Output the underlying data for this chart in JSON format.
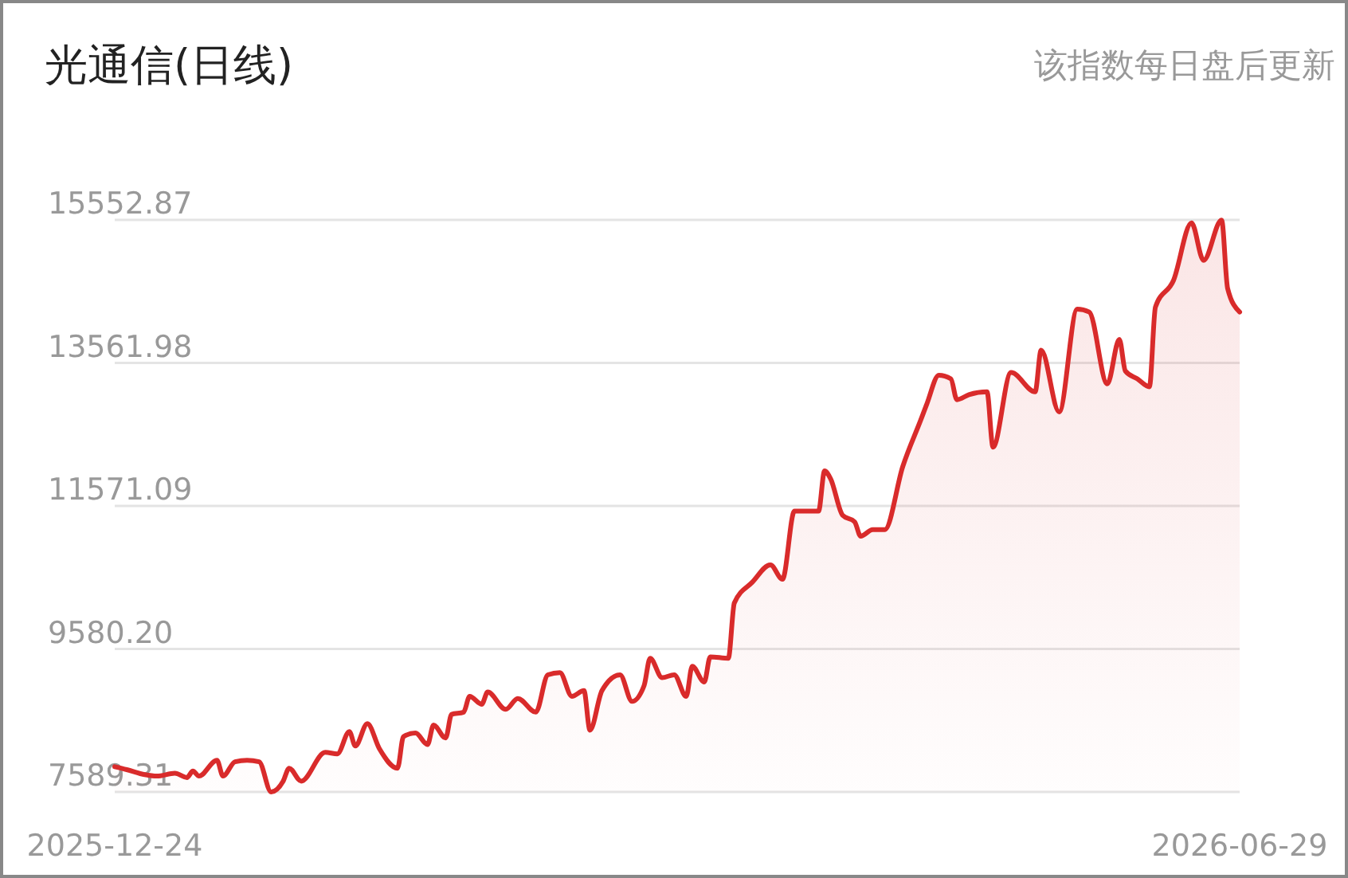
{
  "chart_data": {
    "type": "area",
    "title": "光通信(日线)",
    "subtitle": "该指数每日盘后更新",
    "xlim": [
      "2025-12-24",
      "2026-06-29"
    ],
    "xticks": [
      "2025-12-24",
      "2026-06-29"
    ],
    "ylim": [
      7589.31,
      15552.87
    ],
    "yticks": [
      {
        "value": 7589.31,
        "label": "7589.31"
      },
      {
        "value": 9580.2,
        "label": "9580.20"
      },
      {
        "value": 11571.09,
        "label": "11571.09"
      },
      {
        "value": 13561.98,
        "label": "13561.98"
      },
      {
        "value": 15552.87,
        "label": "15552.87"
      }
    ],
    "grid": "y",
    "series": [
      {
        "color": "#d92b2b",
        "x": [
          "2025-12-24",
          "2025-12-26",
          "2025-12-29",
          "2025-12-31",
          "2026-01-03",
          "2026-01-05",
          "2026-01-06",
          "2026-01-07",
          "2026-01-10",
          "2026-01-11",
          "2026-01-13",
          "2026-01-15",
          "2026-01-17",
          "2026-01-19",
          "2026-01-21",
          "2026-01-22",
          "2026-01-24",
          "2026-01-28",
          "2026-01-30",
          "2026-02-01",
          "2026-02-02",
          "2026-02-04",
          "2026-02-06",
          "2026-02-09",
          "2026-02-10",
          "2026-02-12",
          "2026-02-14",
          "2026-02-15",
          "2026-02-17",
          "2026-02-18",
          "2026-02-20",
          "2026-02-21",
          "2026-02-23",
          "2026-02-24",
          "2026-02-27",
          "2026-03-01",
          "2026-03-04",
          "2026-03-06",
          "2026-03-08",
          "2026-03-10",
          "2026-03-12",
          "2026-03-13",
          "2026-03-15",
          "2026-03-18",
          "2026-03-20",
          "2026-03-22",
          "2026-03-23",
          "2026-03-25",
          "2026-03-27",
          "2026-03-29",
          "2026-03-30",
          "2026-04-01",
          "2026-04-02",
          "2026-04-05",
          "2026-04-06",
          "2026-04-09",
          "2026-04-12",
          "2026-04-14",
          "2026-04-16",
          "2026-04-20",
          "2026-04-21",
          "2026-04-22",
          "2026-04-24",
          "2026-04-26",
          "2026-04-27",
          "2026-04-29",
          "2026-05-01",
          "2026-05-04",
          "2026-05-07",
          "2026-05-08",
          "2026-05-10",
          "2026-05-12",
          "2026-05-13",
          "2026-05-15",
          "2026-05-18",
          "2026-05-19",
          "2026-05-22",
          "2026-05-26",
          "2026-05-27",
          "2026-05-30",
          "2026-06-02",
          "2026-06-04",
          "2026-06-07",
          "2026-06-09",
          "2026-06-10",
          "2026-06-12",
          "2026-06-14",
          "2026-06-15",
          "2026-06-18",
          "2026-06-21",
          "2026-06-23",
          "2026-06-26",
          "2026-06-27",
          "2026-06-29"
        ],
        "values": [
          7940,
          7900,
          7830,
          7810,
          7850,
          7790,
          7880,
          7810,
          8030,
          7810,
          8010,
          8030,
          8010,
          7590,
          7740,
          7920,
          7740,
          8140,
          8120,
          8430,
          8230,
          8540,
          8190,
          7920,
          8360,
          8410,
          8250,
          8520,
          8340,
          8670,
          8700,
          8920,
          8810,
          8980,
          8740,
          8890,
          8700,
          9220,
          9250,
          8920,
          9000,
          8450,
          9000,
          9220,
          8850,
          9070,
          9450,
          9180,
          9220,
          8920,
          9340,
          9120,
          9470,
          9450,
          10220,
          10510,
          10750,
          10550,
          11500,
          11500,
          12060,
          11950,
          11440,
          11350,
          11150,
          11240,
          11240,
          12120,
          12770,
          12990,
          13390,
          13340,
          13050,
          13120,
          13160,
          12390,
          13430,
          13160,
          13740,
          12880,
          14310,
          14270,
          13270,
          13890,
          13450,
          13340,
          13230,
          14340,
          14710,
          15510,
          14990,
          15550,
          14600,
          14270
        ]
      }
    ]
  }
}
